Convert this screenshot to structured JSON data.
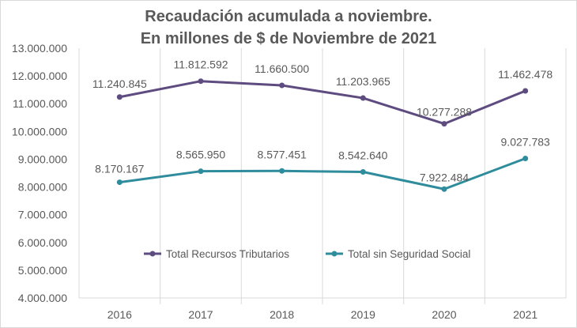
{
  "chart_data": {
    "type": "line",
    "title": [
      "Recaudación acumulada a noviembre.",
      "En millones de $ de Noviembre de 2021"
    ],
    "categories": [
      "2016",
      "2017",
      "2018",
      "2019",
      "2020",
      "2021"
    ],
    "series": [
      {
        "name": "Total Recursos Tributarios",
        "color": "#5e4b80",
        "values": [
          11240845,
          11812592,
          11660500,
          11203965,
          10277288,
          11462478
        ],
        "labels": [
          "11.240.845",
          "11.812.592",
          "11.660.500",
          "11.203.965",
          "10.277.288",
          "11.462.478"
        ]
      },
      {
        "name": "Total sin Seguridad Social",
        "color": "#2f8c9c",
        "values": [
          8170167,
          8565950,
          8577451,
          8542640,
          7922484,
          9027783
        ],
        "labels": [
          "8.170.167",
          "8.565.950",
          "8.577.451",
          "8.542.640",
          "7.922.484",
          "9.027.783"
        ]
      }
    ],
    "ylim": [
      4000000,
      13000000
    ],
    "yticks": [
      4000000,
      5000000,
      6000000,
      7000000,
      8000000,
      9000000,
      10000000,
      11000000,
      12000000,
      13000000
    ],
    "ytick_labels": [
      "4.000.000",
      "5.000.000",
      "6.000.000",
      "7.000.000",
      "8.000.000",
      "9.000.000",
      "10.000.000",
      "11.000.000",
      "12.000.000",
      "13.000.000"
    ],
    "grid": "vertical",
    "legend": "center"
  }
}
